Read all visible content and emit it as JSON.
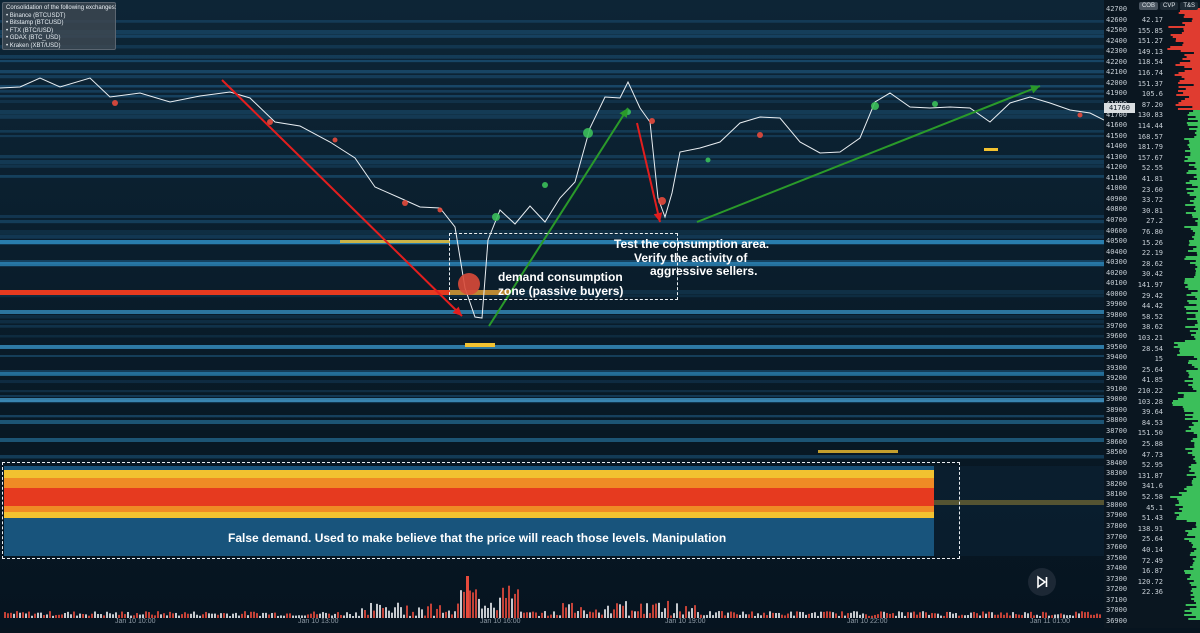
{
  "legend": {
    "title": "Consolidation of the following exchanges:",
    "exchanges": [
      "• Binance (BTCUSDT)",
      "• Bitstamp (BTCUSD)",
      "• FTX (BTC/USD)",
      "• GDAX (BTC_USD)",
      "• Kraken (XBT/USD)"
    ]
  },
  "annotations": {
    "demand_zone": "demand consumption zone (passive buyers)",
    "test_line1": "Test the consumption area.",
    "test_line2": "Verify the activity of",
    "test_line3": "aggressive sellers.",
    "false_demand": "False demand. Used to make believe that the price will reach those levels. Manipulation"
  },
  "tabs": [
    "COB",
    "CVP",
    "T&S"
  ],
  "current_price": "41760",
  "price_ticks": [
    "42700",
    "42600",
    "42500",
    "42400",
    "42300",
    "42200",
    "42100",
    "42000",
    "41900",
    "41800",
    "41700",
    "41600",
    "41500",
    "41400",
    "41300",
    "41200",
    "41100",
    "41000",
    "40900",
    "40800",
    "40700",
    "40600",
    "40500",
    "40400",
    "40300",
    "40200",
    "40100",
    "40000",
    "39900",
    "39800",
    "39700",
    "39600",
    "39500",
    "39400",
    "39300",
    "39200",
    "39100",
    "39000",
    "38900",
    "38800",
    "38700",
    "38600",
    "38500",
    "38400",
    "38300",
    "38200",
    "38100",
    "38000",
    "37900",
    "37800",
    "37700",
    "37600",
    "37500",
    "37400",
    "37300",
    "37200",
    "37100",
    "37000",
    "36900"
  ],
  "volume_ticks": [
    "42.17",
    "155.85",
    "151.27",
    "149.13",
    "118.54",
    "116.74",
    "151.37",
    "105.6",
    "87.20",
    "130.83",
    "114.44",
    "168.57",
    "181.79",
    "157.67",
    "52.55",
    "41.81",
    "23.60",
    "33.72",
    "30.81",
    "27.2",
    "76.80",
    "15.26",
    "22.19",
    "28.62",
    "30.42",
    "141.97",
    "29.42",
    "44.42",
    "58.52",
    "38.62",
    "103.21",
    "28.54",
    "15",
    "25.64",
    "41.85",
    "210.22",
    "103.28",
    "39.64",
    "84.53",
    "151.50",
    "25.88",
    "47.73",
    "52.95",
    "131.87",
    "341.6",
    "52.58",
    "45.1",
    "51.43",
    "138.91",
    "25.64",
    "40.14",
    "72.49",
    "16.87",
    "120.72",
    "22.36"
  ],
  "time_labels": [
    "Jan 10 10:00",
    "Jan 10 13:00",
    "Jan 10 16:00",
    "Jan 10 19:00",
    "Jan 10 22:00",
    "Jan 11 01:00"
  ],
  "colors": {
    "bid": "#e64a3c",
    "ask": "#3bbf5a",
    "heat_hot": "#e63a1f",
    "heat_warm": "#f2c230",
    "heat_cool": "#2a78a8",
    "trend_up": "#2a9a2a",
    "trend_down": "#e31e1e"
  }
}
